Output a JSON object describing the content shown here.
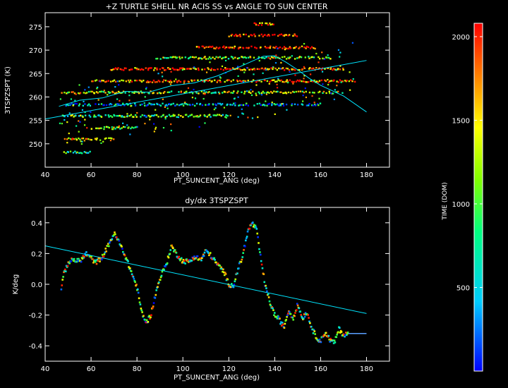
{
  "chart_data": [
    {
      "type": "scatter",
      "title": "+Z TURTLE SHELL NR ACIS SS vs ANGLE TO SUN CENTER",
      "xlabel": "PT_SUNCENT_ANG (deg)",
      "ylabel": "3TSPZSPT (K)",
      "xlim": [
        40,
        190
      ],
      "ylim": [
        245,
        278
      ],
      "xticks": [
        "40",
        "60",
        "80",
        "100",
        "120",
        "140",
        "160",
        "180"
      ],
      "yticks": [
        "250",
        "255",
        "260",
        "265",
        "270",
        "275"
      ],
      "xtick_values": [
        40,
        60,
        80,
        100,
        120,
        140,
        160,
        180
      ],
      "ytick_values": [
        250,
        255,
        260,
        265,
        270,
        275
      ],
      "bands": [
        {
          "y": 248.2,
          "x0": 48,
          "x1": 60,
          "c": 0.35
        },
        {
          "y": 251.0,
          "x0": 48,
          "x1": 70,
          "c": 0.75
        },
        {
          "y": 253.4,
          "x0": 60,
          "x1": 80,
          "c": 0.55
        },
        {
          "y": 256.0,
          "x0": 47,
          "x1": 120,
          "c": 0.45
        },
        {
          "y": 258.4,
          "x0": 48,
          "x1": 160,
          "c": 0.25
        },
        {
          "y": 261.0,
          "x0": 47,
          "x1": 170,
          "c": 0.6
        },
        {
          "y": 263.4,
          "x0": 60,
          "x1": 175,
          "c": 0.85
        },
        {
          "y": 266.0,
          "x0": 68,
          "x1": 170,
          "c": 0.9
        },
        {
          "y": 268.4,
          "x0": 88,
          "x1": 165,
          "c": 0.55
        },
        {
          "y": 270.6,
          "x0": 105,
          "x1": 158,
          "c": 0.95
        },
        {
          "y": 273.2,
          "x0": 120,
          "x1": 150,
          "c": 0.98
        },
        {
          "y": 275.6,
          "x0": 130,
          "x1": 140,
          "c": 0.9
        }
      ],
      "fit_line": {
        "x": [
          40,
          180
        ],
        "y": [
          255.3,
          267.8
        ]
      },
      "smooth_curve": {
        "x": [
          46,
          55,
          65,
          75,
          85,
          95,
          105,
          115,
          125,
          135,
          140,
          145,
          150,
          155,
          160,
          170,
          180
        ],
        "y": [
          258.0,
          259.3,
          259.8,
          261.2,
          261.0,
          262.4,
          263.0,
          264.5,
          266.5,
          268.7,
          268.8,
          267.4,
          265.8,
          264.0,
          262.5,
          260.2,
          256.8
        ]
      },
      "colorbar": {
        "label": "TIME (DOM)",
        "ticks": [
          "500",
          "1000",
          "1500",
          "2000"
        ],
        "tick_values": [
          500,
          1000,
          1500,
          2000
        ],
        "range": [
          0,
          2080
        ]
      }
    },
    {
      "type": "scatter",
      "title": "dy/dx 3TSPZSPT",
      "xlabel": "PT_SUNCENT_ANG (deg)",
      "ylabel": "K/deg",
      "xlim": [
        40,
        190
      ],
      "ylim": [
        -0.5,
        0.5
      ],
      "xticks": [
        "40",
        "60",
        "80",
        "100",
        "120",
        "140",
        "160",
        "180"
      ],
      "yticks": [
        "-0.4",
        "-0.2",
        "0.0",
        "0.2",
        "0.4"
      ],
      "xtick_values": [
        40,
        60,
        80,
        100,
        120,
        140,
        160,
        180
      ],
      "ytick_values": [
        -0.4,
        -0.2,
        0.0,
        0.2,
        0.4
      ],
      "derivative_curve": {
        "x": [
          47,
          48,
          50,
          52,
          55,
          58,
          60,
          62,
          65,
          68,
          70,
          72,
          75,
          78,
          80,
          82,
          84,
          86,
          88,
          90,
          93,
          95,
          97,
          100,
          103,
          105,
          108,
          110,
          112,
          115,
          118,
          120,
          122,
          124,
          126,
          128,
          130,
          132,
          134,
          136,
          138,
          140,
          142,
          144,
          146,
          148,
          150,
          152,
          154,
          156,
          158,
          160,
          162,
          164,
          166,
          168,
          170,
          172,
          175,
          178,
          180
        ],
        "y": [
          -0.03,
          0.06,
          0.14,
          0.16,
          0.15,
          0.2,
          0.17,
          0.14,
          0.18,
          0.27,
          0.33,
          0.28,
          0.18,
          0.06,
          -0.02,
          -0.18,
          -0.25,
          -0.2,
          -0.07,
          0.04,
          0.14,
          0.25,
          0.2,
          0.15,
          0.15,
          0.18,
          0.16,
          0.22,
          0.19,
          0.13,
          0.08,
          0.0,
          -0.01,
          0.1,
          0.18,
          0.33,
          0.4,
          0.36,
          0.16,
          -0.02,
          -0.12,
          -0.2,
          -0.23,
          -0.28,
          -0.17,
          -0.22,
          -0.13,
          -0.22,
          -0.18,
          -0.28,
          -0.34,
          -0.37,
          -0.31,
          -0.36,
          -0.38,
          -0.29,
          -0.33,
          -0.32,
          -0.32,
          -0.32,
          -0.32
        ]
      },
      "fit_line": {
        "x": [
          40,
          180
        ],
        "y": [
          0.25,
          -0.19
        ]
      }
    }
  ]
}
